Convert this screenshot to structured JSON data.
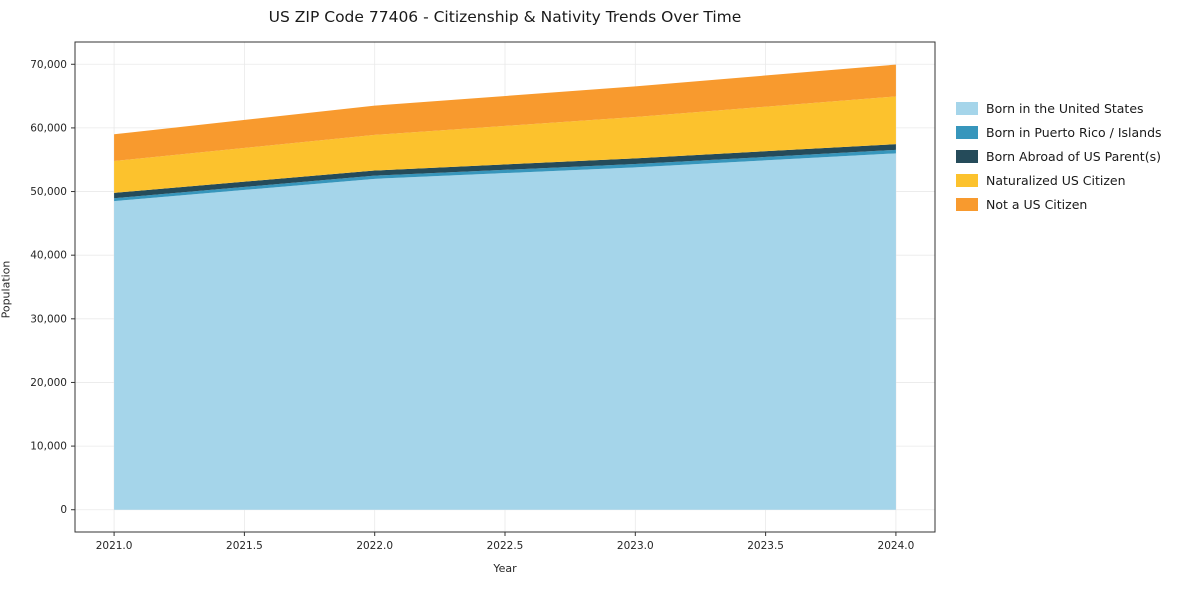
{
  "chart_data": {
    "type": "area",
    "title": "US ZIP Code 77406 - Citizenship & Nativity Trends Over Time",
    "xlabel": "Year",
    "ylabel": "Population",
    "x": [
      2021,
      2022,
      2023,
      2024
    ],
    "series": [
      {
        "name": "Born in the United States",
        "color": "#a5d5ea",
        "values": [
          48500,
          52000,
          53800,
          56000
        ]
      },
      {
        "name": "Born in Puerto Rico / Islands",
        "color": "#3796bc",
        "values": [
          450,
          500,
          520,
          550
        ]
      },
      {
        "name": "Born Abroad of US Parent(s)",
        "color": "#254b5a",
        "values": [
          850,
          800,
          900,
          900
        ]
      },
      {
        "name": "Naturalized US Citizen",
        "color": "#fcc22d",
        "values": [
          5000,
          5600,
          6500,
          7500
        ]
      },
      {
        "name": "Not a US Citizen",
        "color": "#f89a2e",
        "values": [
          4200,
          4600,
          4800,
          5000
        ]
      }
    ],
    "stacked": true,
    "xlim": [
      2020.85,
      2024.15
    ],
    "ylim": [
      -3500,
      73500
    ],
    "xticks": {
      "values": [
        2021.0,
        2021.5,
        2022.0,
        2022.5,
        2023.0,
        2023.5,
        2024.0
      ],
      "labels": [
        "2021.0",
        "2021.5",
        "2022.0",
        "2022.5",
        "2023.0",
        "2023.5",
        "2024.0"
      ]
    },
    "yticks": {
      "values": [
        0,
        10000,
        20000,
        30000,
        40000,
        50000,
        60000,
        70000
      ],
      "labels": [
        "0",
        "10,000",
        "20,000",
        "30,000",
        "40,000",
        "50,000",
        "60,000",
        "70,000"
      ]
    },
    "grid": true,
    "legend_position": "right"
  },
  "colors": {
    "axis": "#333333",
    "grid": "#e9e9e9",
    "tick_text": "#262626"
  }
}
